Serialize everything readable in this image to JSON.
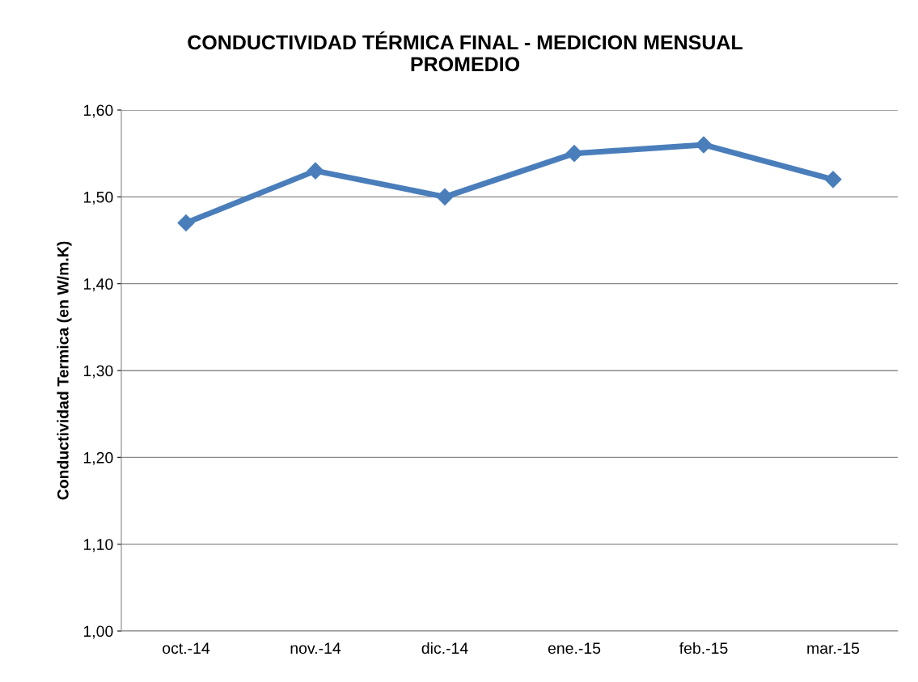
{
  "chart_data": {
    "type": "line",
    "title": "CONDUCTIVIDAD TÉRMICA FINAL - MEDICION MENSUAL\nPROMEDIO",
    "ylabel": "Conductividad Termica (en W/m.K)",
    "categories": [
      "oct.-14",
      "nov.-14",
      "dic.-14",
      "ene.-15",
      "feb.-15",
      "mar.-15"
    ],
    "series": [
      {
        "color": "#4a7ebb",
        "values": [
          1.47,
          1.53,
          1.5,
          1.55,
          1.56,
          1.52
        ]
      }
    ],
    "ylim": [
      1.0,
      1.6
    ],
    "yticks": [
      {
        "value": 1.0,
        "label": "1,00"
      },
      {
        "value": 1.1,
        "label": "1,10"
      },
      {
        "value": 1.2,
        "label": "1,20"
      },
      {
        "value": 1.3,
        "label": "1,30"
      },
      {
        "value": 1.4,
        "label": "1,40"
      },
      {
        "value": 1.5,
        "label": "1,50"
      },
      {
        "value": 1.6,
        "label": "1,60"
      }
    ],
    "grid": "y",
    "marker": "diamond",
    "line_style": "solid",
    "legend": false
  }
}
